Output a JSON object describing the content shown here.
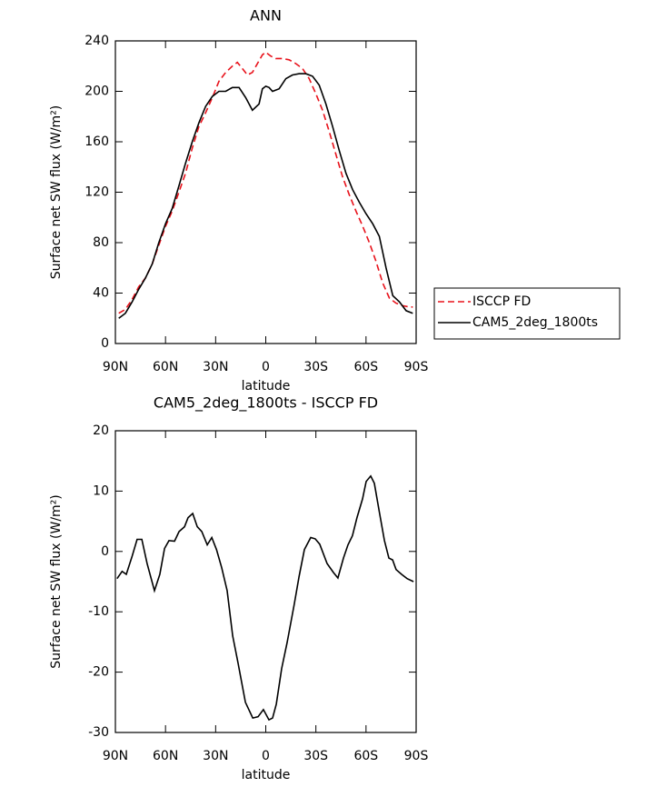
{
  "chart_data": [
    {
      "type": "line",
      "title": "ANN",
      "xlabel": "latitude",
      "ylabel": "Surface net SW flux (W/m²)",
      "xlim": [
        90,
        -90
      ],
      "xticks": [
        {
          "value": 90,
          "label": "90N"
        },
        {
          "value": 60,
          "label": "60N"
        },
        {
          "value": 30,
          "label": "30N"
        },
        0,
        {
          "value": -30,
          "label": "30S"
        },
        {
          "value": -60,
          "label": "60S"
        },
        {
          "value": -90,
          "label": "90S"
        }
      ],
      "ylim": [
        0,
        240
      ],
      "yticks": [
        0,
        40,
        80,
        120,
        160,
        200,
        240
      ],
      "legend": "right",
      "series": [
        {
          "name": "ISCCP FD",
          "color": "#e8121b",
          "linestyle": "dashed",
          "x": [
            88,
            84,
            80,
            76,
            72,
            68,
            64,
            60,
            56,
            52,
            48,
            44,
            40,
            36,
            32,
            28,
            24,
            20,
            17,
            14,
            11,
            8,
            5,
            2,
            0,
            -3,
            -6,
            -10,
            -14,
            -18,
            -22,
            -26,
            -30,
            -34,
            -38,
            -42,
            -46,
            -50,
            -54,
            -58,
            -62,
            -66,
            -70,
            -74,
            -78,
            -82,
            -86,
            -88
          ],
          "values": [
            24,
            27,
            35,
            45,
            52,
            63,
            78,
            93,
            105,
            120,
            135,
            155,
            172,
            183,
            195,
            208,
            215,
            220,
            223,
            218,
            213,
            215,
            222,
            229,
            231,
            228,
            226,
            226,
            225,
            222,
            218,
            210,
            198,
            185,
            168,
            150,
            132,
            118,
            105,
            93,
            80,
            65,
            48,
            36,
            32,
            30,
            29,
            29
          ]
        },
        {
          "name": "CAM5_2deg_1800ts",
          "color": "#000000",
          "linestyle": "solid",
          "x": [
            88,
            84,
            80,
            76,
            72,
            68,
            64,
            60,
            56,
            52,
            48,
            44,
            40,
            36,
            32,
            28,
            24,
            20,
            16,
            12,
            8,
            4,
            2,
            0,
            -2,
            -4,
            -8,
            -12,
            -16,
            -20,
            -24,
            -28,
            -32,
            -36,
            -40,
            -44,
            -48,
            -52,
            -56,
            -60,
            -64,
            -68,
            -72,
            -76,
            -80,
            -84,
            -88
          ],
          "values": [
            20,
            24,
            33,
            43,
            52,
            63,
            80,
            95,
            107,
            125,
            143,
            160,
            175,
            188,
            196,
            200,
            200,
            203,
            203,
            195,
            185,
            190,
            202,
            204,
            203,
            200,
            202,
            210,
            213,
            214,
            214,
            212,
            205,
            190,
            172,
            153,
            135,
            122,
            112,
            103,
            95,
            85,
            60,
            38,
            33,
            26,
            24
          ]
        }
      ]
    },
    {
      "type": "line",
      "title": "CAM5_2deg_1800ts - ISCCP FD",
      "xlabel": "latitude",
      "ylabel": "Surface net SW flux (W/m²)",
      "xlim": [
        90,
        -90
      ],
      "xticks": [
        {
          "value": 90,
          "label": "90N"
        },
        {
          "value": 60,
          "label": "60N"
        },
        {
          "value": 30,
          "label": "30N"
        },
        0,
        {
          "value": -30,
          "label": "30S"
        },
        {
          "value": -60,
          "label": "60S"
        },
        {
          "value": -90,
          "label": "90S"
        }
      ],
      "ylim": [
        -30,
        20
      ],
      "yticks": [
        -30,
        -20,
        -10,
        0,
        10,
        20
      ],
      "color": "#000000",
      "x": [
        89,
        86,
        83.5,
        80,
        77,
        74.2,
        71,
        66.6,
        63.4,
        60.6,
        57.9,
        54.6,
        51.9,
        48.6,
        46.5,
        43.7,
        41,
        38.3,
        35,
        32.3,
        29.5,
        26.4,
        23.1,
        19.8,
        16.6,
        12.2,
        7.8,
        4.6,
        1.4,
        -1.9,
        -4.1,
        -6.3,
        -9.5,
        -12.8,
        -17.1,
        -19.9,
        -23.1,
        -26.9,
        -29.6,
        -32.3,
        -36.7,
        -40.5,
        -43.2,
        -46.5,
        -49.2,
        -51.9,
        -54.6,
        -57.9,
        -60.1,
        -62.8,
        -65,
        -68.2,
        -71,
        -73.7,
        -75.9,
        -78,
        -81.3,
        -84.6,
        -88.4
      ],
      "values": [
        -4.5,
        -3.3,
        -3.8,
        -0.8,
        2.0,
        2.0,
        -2.0,
        -6.5,
        -3.8,
        0.5,
        1.8,
        1.7,
        3.3,
        4.1,
        5.6,
        6.3,
        4.1,
        3.3,
        1.1,
        2.3,
        0.3,
        -2.7,
        -6.5,
        -14,
        -18.5,
        -25,
        -27.6,
        -27.4,
        -26.2,
        -27.9,
        -27.6,
        -25.3,
        -19.4,
        -15.1,
        -8.7,
        -4.2,
        0.3,
        2.3,
        2.1,
        1.2,
        -2.0,
        -3.5,
        -4.4,
        -1.1,
        1.1,
        2.6,
        5.6,
        8.7,
        11.6,
        12.5,
        11.3,
        6.2,
        1.8,
        -1.1,
        -1.4,
        -3.0,
        -3.8,
        -4.5,
        -5.0
      ]
    }
  ]
}
